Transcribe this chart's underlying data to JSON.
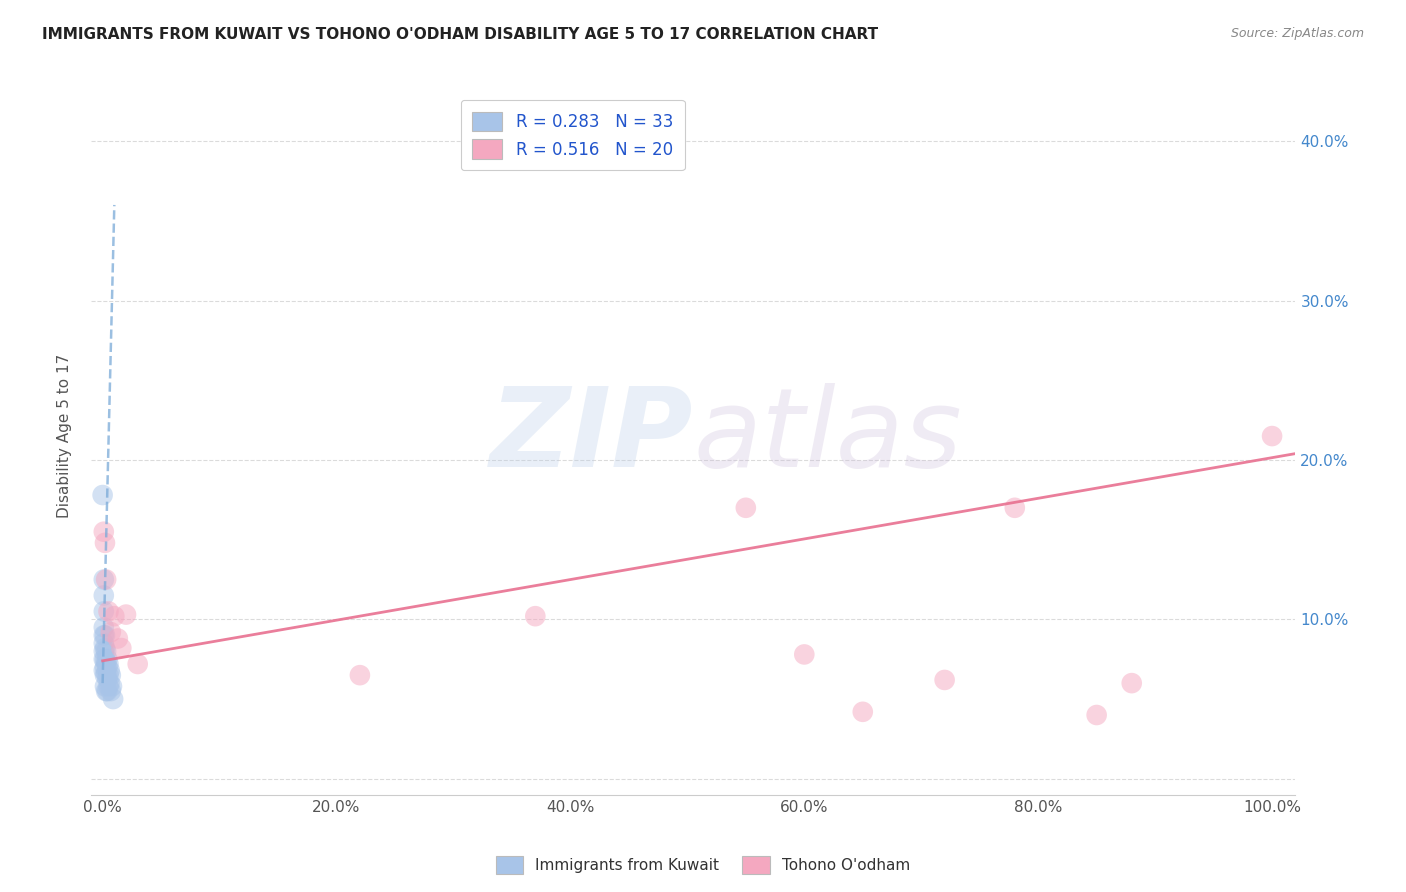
{
  "title": "IMMIGRANTS FROM KUWAIT VS TOHONO O'ODHAM DISABILITY AGE 5 TO 17 CORRELATION CHART",
  "source": "Source: ZipAtlas.com",
  "ylabel": "Disability Age 5 to 17",
  "legend1_r": "0.283",
  "legend1_n": "33",
  "legend2_r": "0.516",
  "legend2_n": "20",
  "blue_color": "#a8c4e8",
  "pink_color": "#f4a8c0",
  "blue_line_color": "#7aaad8",
  "pink_line_color": "#e87090",
  "watermark_zip": "ZIP",
  "watermark_atlas": "atlas",
  "blue_points_x": [
    0.0,
    0.001,
    0.001,
    0.001,
    0.001,
    0.001,
    0.001,
    0.001,
    0.001,
    0.001,
    0.002,
    0.002,
    0.002,
    0.002,
    0.002,
    0.002,
    0.003,
    0.003,
    0.003,
    0.003,
    0.004,
    0.004,
    0.004,
    0.004,
    0.005,
    0.005,
    0.005,
    0.006,
    0.006,
    0.007,
    0.007,
    0.008,
    0.009
  ],
  "blue_points_y": [
    0.178,
    0.125,
    0.115,
    0.105,
    0.095,
    0.09,
    0.085,
    0.08,
    0.075,
    0.068,
    0.09,
    0.082,
    0.075,
    0.07,
    0.065,
    0.058,
    0.08,
    0.073,
    0.066,
    0.055,
    0.075,
    0.07,
    0.063,
    0.055,
    0.072,
    0.065,
    0.058,
    0.068,
    0.06,
    0.065,
    0.055,
    0.058,
    0.05
  ],
  "pink_points_x": [
    0.001,
    0.002,
    0.003,
    0.005,
    0.007,
    0.01,
    0.013,
    0.016,
    0.02,
    0.03,
    0.22,
    0.37,
    0.55,
    0.6,
    0.65,
    0.72,
    0.78,
    0.85,
    0.88,
    1.0
  ],
  "pink_points_y": [
    0.155,
    0.148,
    0.125,
    0.105,
    0.092,
    0.102,
    0.088,
    0.082,
    0.103,
    0.072,
    0.065,
    0.102,
    0.17,
    0.078,
    0.042,
    0.062,
    0.17,
    0.04,
    0.06,
    0.215
  ],
  "xlim": [
    -0.01,
    1.02
  ],
  "ylim": [
    -0.01,
    0.44
  ],
  "xticks": [
    0.0,
    0.2,
    0.4,
    0.6,
    0.8,
    1.0
  ],
  "xtick_labels": [
    "0.0%",
    "20.0%",
    "40.0%",
    "60.0%",
    "80.0%",
    "100.0%"
  ],
  "yticks": [
    0.0,
    0.1,
    0.2,
    0.3,
    0.4
  ],
  "ytick_labels_right": [
    "",
    "10.0%",
    "20.0%",
    "30.0%",
    "40.0%"
  ],
  "pink_trendline_x": [
    0.0,
    1.02
  ],
  "pink_trendline_y": [
    0.074,
    0.204
  ],
  "blue_trendline_x": [
    0.0,
    0.01
  ],
  "blue_trendline_y": [
    0.06,
    0.36
  ],
  "grid_color": "#d8d8d8",
  "background_color": "#ffffff",
  "legend_text_color": "#2255cc",
  "right_tick_color": "#4488cc",
  "title_color": "#222222",
  "source_color": "#888888",
  "ylabel_color": "#555555"
}
